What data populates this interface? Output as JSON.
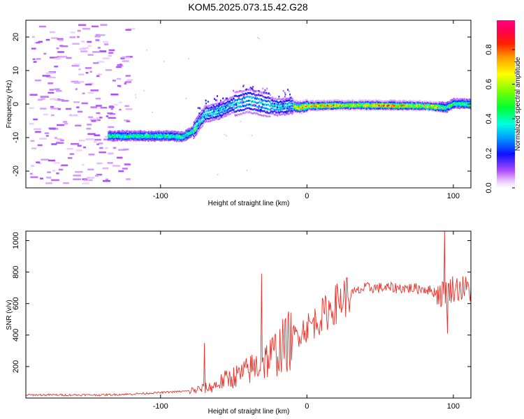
{
  "title": "KOM5.2025.073.15.42.G28",
  "chart_data": [
    {
      "type": "heatmap",
      "title": "KOM5.2025.073.15.42.G28",
      "xlabel": "Height of straight line (km)",
      "ylabel": "Frequency (Hz)",
      "xlim": [
        -192,
        112
      ],
      "ylim": [
        -25,
        25
      ],
      "xticks": [
        "-100",
        "0",
        "100"
      ],
      "yticks": [
        "-20",
        "-10",
        "0",
        "10",
        "20"
      ],
      "colorbar": {
        "label": "Normalized spectral amplitude",
        "range": [
          0,
          0.97
        ],
        "ticks": [
          "0.0",
          "0.2",
          "0.4",
          "0.6",
          "0.8"
        ],
        "colormap": "rainbow (purple-blue-cyan-green-yellow-red-magenta)"
      },
      "ridge": {
        "x": [
          -135,
          -125,
          -110,
          -95,
          -85,
          -78,
          -70,
          -60,
          -50,
          -40,
          -30,
          -20,
          -12,
          -5,
          0,
          20,
          50,
          80,
          95,
          100,
          112
        ],
        "freq": [
          -9.5,
          -9.5,
          -9.5,
          -9.5,
          -9.8,
          -8,
          -3,
          -2,
          0,
          1,
          0,
          -1,
          -0.5,
          -1,
          -0.5,
          -0.3,
          -0.3,
          -0.5,
          -1,
          0.2,
          0
        ]
      },
      "grid": false
    },
    {
      "type": "line",
      "xlabel": "Height of straight line (km)",
      "ylabel": "SNR (v/v)",
      "xlim": [
        -192,
        112
      ],
      "ylim": [
        0,
        1060
      ],
      "xticks": [
        "-100",
        "0",
        "100"
      ],
      "yticks": [
        "200",
        "400",
        "600",
        "800",
        "1000"
      ],
      "color": "#e8312a",
      "series_envelope": {
        "x": [
          -192,
          -140,
          -120,
          -100,
          -80,
          -65,
          -55,
          -45,
          -35,
          -25,
          -15,
          -5,
          5,
          15,
          25,
          40,
          60,
          80,
          92,
          100,
          112
        ],
        "y": [
          20,
          20,
          25,
          35,
          45,
          70,
          120,
          150,
          200,
          260,
          340,
          420,
          480,
          560,
          640,
          700,
          700,
          695,
          660,
          700,
          690
        ]
      },
      "peaks": [
        {
          "x": -70,
          "y": 350
        },
        {
          "x": -31,
          "y": 790
        },
        {
          "x": 94,
          "y": 1060
        },
        {
          "x": 96,
          "y": 410
        }
      ],
      "grid": false
    }
  ]
}
